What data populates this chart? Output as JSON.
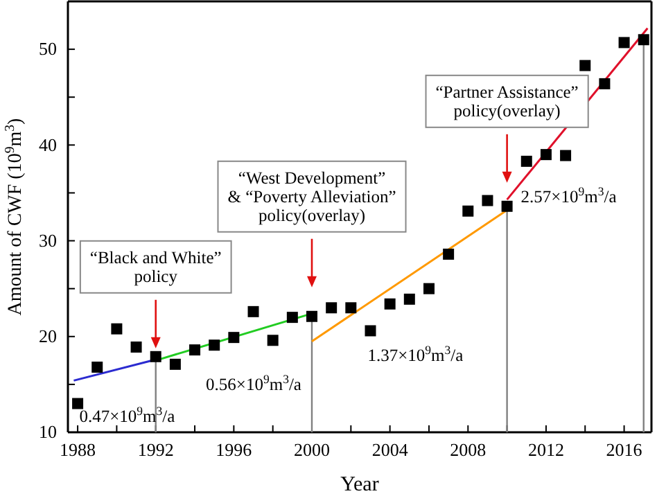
{
  "chart_data": {
    "type": "scatter",
    "xlabel": "Year",
    "ylabel": "Amount of CWF (10$^{9}$m$^{3}$)",
    "grid": false,
    "xlim": [
      1987.5,
      2017.4
    ],
    "ylim": [
      10,
      55
    ],
    "xticks": [
      1988,
      {
        "value": 1990,
        "label": null
      },
      1992,
      {
        "value": 1994,
        "label": null
      },
      1996,
      {
        "value": 1998,
        "label": null
      },
      2000,
      {
        "value": 2002,
        "label": null
      },
      2004,
      {
        "value": 2006,
        "label": null
      },
      2008,
      {
        "value": 2010,
        "label": null
      },
      2012,
      {
        "value": 2014,
        "label": null
      },
      2016
    ],
    "yticks": [
      10,
      {
        "value": 15,
        "label": null
      },
      20,
      {
        "value": 25,
        "label": null
      },
      30,
      {
        "value": 35,
        "label": null
      },
      40,
      {
        "value": 45,
        "label": null
      },
      50
    ],
    "series": [
      {
        "marker": "square",
        "color": "#000000",
        "x": [
          1988,
          1989,
          1990,
          1991,
          1992,
          1993,
          1994,
          1995,
          1996,
          1997,
          1998,
          1999,
          2000,
          2001,
          2002,
          2003,
          2004,
          2005,
          2006,
          2007,
          2008,
          2009,
          2010,
          2011,
          2012,
          2013,
          2014,
          2015,
          2016,
          2017
        ],
        "values": [
          13.0,
          16.8,
          20.8,
          18.9,
          17.9,
          17.1,
          18.6,
          19.1,
          19.9,
          22.6,
          19.6,
          22.0,
          22.1,
          23.0,
          23.0,
          20.6,
          23.4,
          23.9,
          25.0,
          28.6,
          33.1,
          34.2,
          33.6,
          38.3,
          39.0,
          38.9,
          48.3,
          46.4,
          50.7,
          51.0
        ]
      },
      {
        "type": "line",
        "color": "#2b2bd0",
        "x": [
          1987.8,
          1992
        ],
        "values": [
          15.4,
          17.6
        ]
      },
      {
        "type": "line",
        "color": "#22cc22",
        "x": [
          1992,
          2000
        ],
        "values": [
          17.5,
          22.4
        ]
      },
      {
        "type": "line",
        "color": "#ff9900",
        "x": [
          2000,
          2010
        ],
        "values": [
          19.5,
          33.2
        ]
      },
      {
        "type": "line",
        "color": "#e0102a",
        "x": [
          2010,
          2017.2
        ],
        "values": [
          34.3,
          52.2
        ]
      }
    ],
    "ref_lines": [
      {
        "axis": "x",
        "value": 1992,
        "color": "#808080"
      },
      {
        "axis": "x",
        "value": 2000,
        "color": "#808080"
      },
      {
        "axis": "x",
        "value": 2010,
        "color": "#808080"
      },
      {
        "axis": "x",
        "value": 2017,
        "color": "#808080"
      }
    ],
    "annotations": [
      "“Black and White”\npolicy",
      "“West Development”\n& “Poverty Alleviation”\npolicy(overlay)",
      "“Partner Assistance”\npolicy(overlay)",
      "0.47×10$^{9}$m$^{3}$/a",
      "0.56×10$^{9}$m$^{3}$/a",
      "1.37×10$^{9}$m$^{3}$/a",
      "2.57×10$^{9}$m$^{3}$/a"
    ]
  }
}
